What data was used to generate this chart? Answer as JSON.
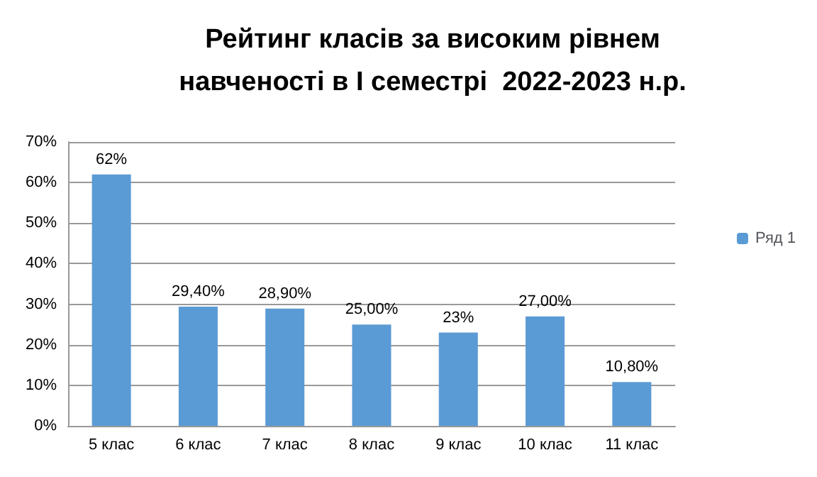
{
  "chart_data": {
    "type": "bar",
    "title": "Рейтинг класів за високим рівнем\nнавченості в І семестрі  2022-2023 н.р.",
    "categories": [
      "5 клас",
      "6 клас",
      "7 клас",
      "8 клас",
      "9 клас",
      "10 клас",
      "11 клас"
    ],
    "series": [
      {
        "name": "Ряд 1",
        "color": "#5b9bd5",
        "values": [
          62,
          29.4,
          28.9,
          25,
          23,
          27,
          10.8
        ],
        "value_labels": [
          "62%",
          "29,40%",
          "28,90%",
          "25,00%",
          "23%",
          "27,00%",
          "10,80%"
        ]
      }
    ],
    "ylim": [
      0,
      70
    ],
    "yticks": [
      {
        "value": 0,
        "label": "0%"
      },
      {
        "value": 10,
        "label": "10%"
      },
      {
        "value": 20,
        "label": "20%"
      },
      {
        "value": 30,
        "label": "30%"
      },
      {
        "value": 40,
        "label": "40%"
      },
      {
        "value": 50,
        "label": "50%"
      },
      {
        "value": 60,
        "label": "60%"
      },
      {
        "value": 70,
        "label": "70%"
      }
    ],
    "grid": "y",
    "legend": "right"
  }
}
